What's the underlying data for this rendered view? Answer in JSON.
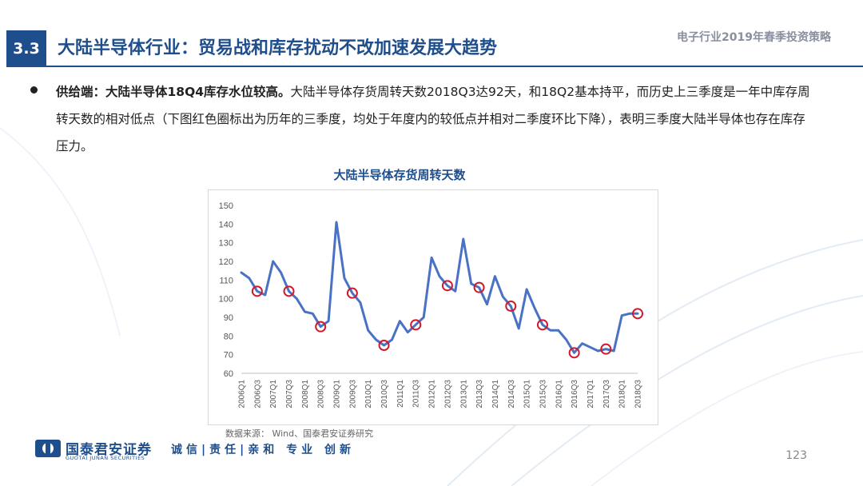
{
  "header": {
    "section_number": "3.3",
    "title": "大陆半导体行业：贸易战和库存扰动不改加速发展大趋势",
    "report_title": "电子行业2019年春季投资策略"
  },
  "body": {
    "lead": "供给端：大陆半导体18Q4库存水位较高。",
    "text": "大陆半导体存货周转天数2018Q3达92天，和18Q2基本持平，而历史上三季度是一年中库存周转天数的相对低点（下图红色圈标出为历年的三季度，均处于年度内的较低点并相对二季度环比下降），表明三季度大陆半导体也存在库存压力。"
  },
  "chart_data": {
    "type": "line",
    "title": "大陆半导体存货周转天数",
    "xlabel": "",
    "ylabel": "",
    "ylim": [
      60,
      150
    ],
    "yticks": [
      60,
      70,
      80,
      90,
      100,
      110,
      120,
      130,
      140,
      150
    ],
    "x": [
      "2006Q1",
      "2006Q2",
      "2006Q3",
      "2006Q4",
      "2007Q1",
      "2007Q2",
      "2007Q3",
      "2007Q4",
      "2008Q1",
      "2008Q2",
      "2008Q3",
      "2008Q4",
      "2009Q1",
      "2009Q2",
      "2009Q3",
      "2009Q4",
      "2010Q1",
      "2010Q2",
      "2010Q3",
      "2010Q4",
      "2011Q1",
      "2011Q2",
      "2011Q3",
      "2011Q4",
      "2012Q1",
      "2012Q2",
      "2012Q3",
      "2012Q4",
      "2013Q1",
      "2013Q2",
      "2013Q3",
      "2013Q4",
      "2014Q1",
      "2014Q2",
      "2014Q3",
      "2014Q4",
      "2015Q1",
      "2015Q2",
      "2015Q3",
      "2015Q4",
      "2016Q1",
      "2016Q2",
      "2016Q3",
      "2016Q4",
      "2017Q1",
      "2017Q2",
      "2017Q3",
      "2017Q4",
      "2018Q1",
      "2018Q2",
      "2018Q3"
    ],
    "xtick_labels": [
      "2006Q1",
      "2006Q3",
      "2007Q1",
      "2007Q3",
      "2008Q1",
      "2008Q3",
      "2009Q1",
      "2009Q3",
      "2010Q1",
      "2010Q3",
      "2011Q1",
      "2011Q3",
      "2012Q1",
      "2012Q3",
      "2013Q1",
      "2013Q3",
      "2014Q1",
      "2014Q3",
      "2015Q1",
      "2015Q3",
      "2016Q1",
      "2016Q3",
      "2017Q1",
      "2017Q3",
      "2018Q1",
      "2018Q3"
    ],
    "series": [
      {
        "name": "",
        "values": [
          114,
          111,
          104,
          102,
          120,
          114,
          104,
          100,
          93,
          92,
          85,
          88,
          141,
          111,
          103,
          98,
          83,
          78,
          75,
          78,
          88,
          82,
          86,
          90,
          122,
          112,
          107,
          104,
          132,
          108,
          106,
          97,
          112,
          101,
          96,
          84,
          105,
          95,
          86,
          83,
          83,
          78,
          71,
          76,
          74,
          72,
          73,
          72,
          91,
          92,
          92
        ]
      }
    ],
    "highlighted": [
      "2006Q3",
      "2007Q3",
      "2008Q3",
      "2009Q3",
      "2010Q3",
      "2011Q3",
      "2012Q3",
      "2013Q3",
      "2014Q3",
      "2015Q3",
      "2016Q3",
      "2017Q3",
      "2018Q3"
    ],
    "grid": false,
    "line_color": "#4a72c4",
    "highlight_color": "#d0192b"
  },
  "source": "数据来源： Wind、国泰君安证券研究",
  "footer": {
    "company_name": "国泰君安证券",
    "company_name_en": "GUOTAI JUNAN SECURITIES",
    "motto": "诚信|责任|亲和 专业 创新",
    "page_number": "123"
  },
  "colors": {
    "brand": "#1f4e8c",
    "background_curve": "#e3ebf5"
  }
}
